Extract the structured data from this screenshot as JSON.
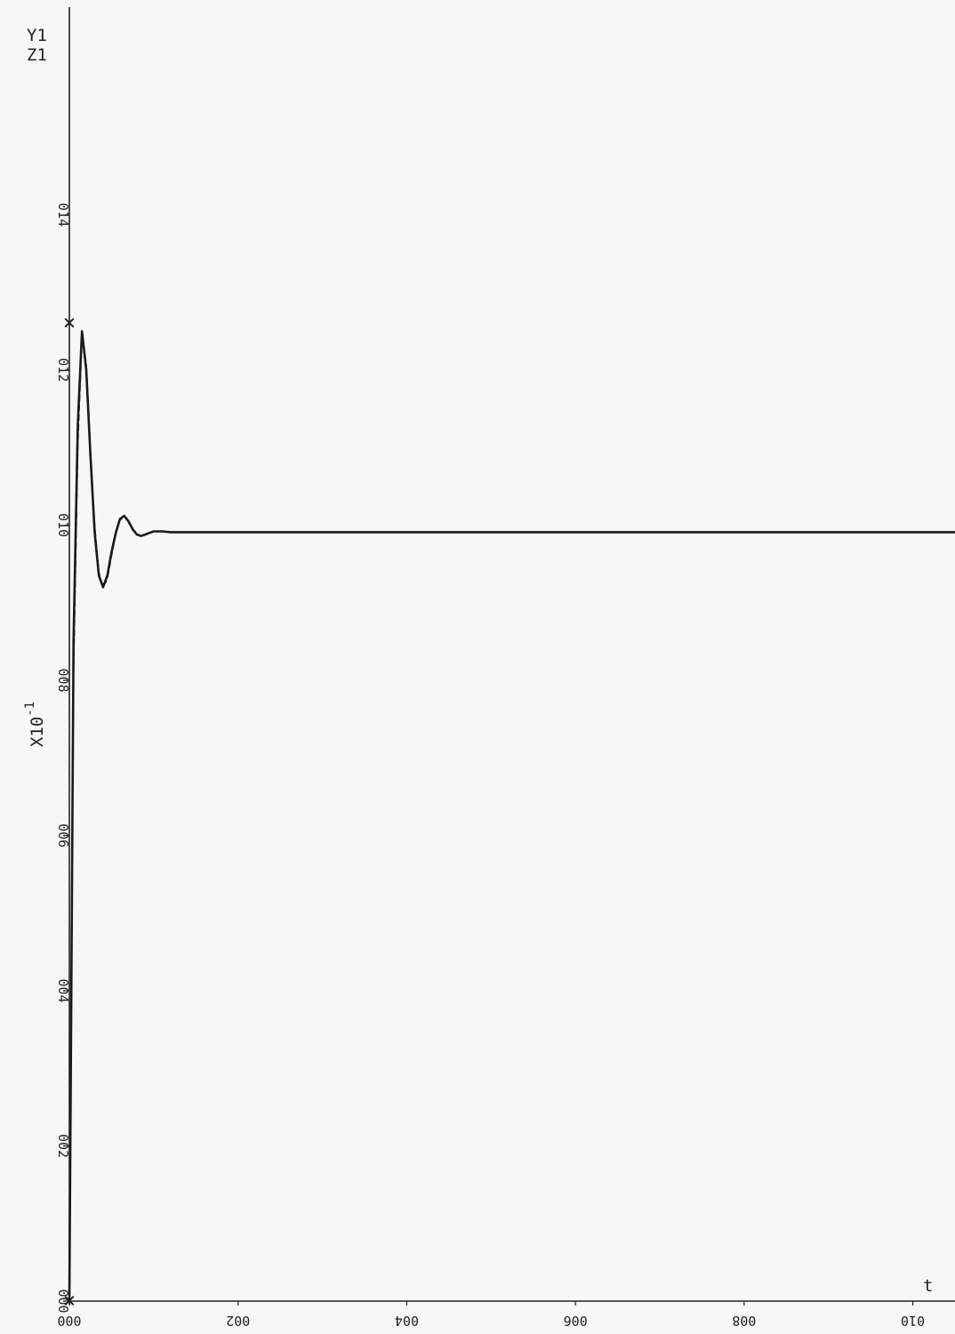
{
  "chart_data": {
    "type": "line",
    "title": "",
    "xlabel": "t",
    "ylabel_lines": [
      "Y1",
      "Z1"
    ],
    "y_multiplier_label": "X10",
    "y_multiplier_exponent": "-1",
    "xlim": [
      0,
      10.5
    ],
    "ylim": [
      0,
      16
    ],
    "x_ticks": [
      0,
      2,
      4,
      6,
      8,
      10
    ],
    "x_tick_labels": [
      "000",
      "002",
      "004",
      "006",
      "008",
      "010"
    ],
    "y_ticks": [
      0,
      2,
      4,
      6,
      8,
      10,
      12,
      14
    ],
    "y_tick_labels": [
      "000",
      "002",
      "004",
      "006",
      "008",
      "010",
      "012",
      "014"
    ],
    "grid": false,
    "markers": [
      {
        "symbol": "×",
        "x": 0,
        "y": 12.6
      },
      {
        "symbol": "×",
        "x": 0,
        "y": 0
      }
    ],
    "series": [
      {
        "style": "solid",
        "x": [
          0,
          0.05,
          0.1,
          0.15,
          0.2,
          0.25,
          0.3,
          0.35,
          0.4,
          0.45,
          0.5,
          0.55,
          0.6,
          0.65,
          0.7,
          0.75,
          0.8,
          0.85,
          0.9,
          0.95,
          1.0,
          1.1,
          1.2,
          1.3,
          1.5,
          2,
          3,
          4,
          5,
          6,
          7,
          8,
          9,
          10,
          10.5
        ],
        "y": [
          0,
          8.5,
          11.3,
          12.5,
          12.0,
          10.9,
          9.9,
          9.35,
          9.2,
          9.35,
          9.65,
          9.9,
          10.08,
          10.12,
          10.05,
          9.95,
          9.88,
          9.86,
          9.88,
          9.9,
          9.92,
          9.92,
          9.91,
          9.91,
          9.91,
          9.91,
          9.91,
          9.91,
          9.91,
          9.91,
          9.91,
          9.91,
          9.91,
          9.91,
          9.91
        ]
      },
      {
        "style": "dashed",
        "x": [
          0,
          0.05,
          0.1,
          0.15,
          0.2,
          0.25,
          0.3,
          0.35,
          0.4,
          0.45,
          0.5,
          0.55,
          0.6,
          0.65,
          0.7,
          0.75,
          0.8,
          0.85,
          0.9,
          0.95,
          1.0,
          1.1,
          1.2,
          1.3,
          1.5,
          2,
          3,
          4,
          5,
          6,
          7,
          8,
          9,
          10,
          10.5
        ],
        "y": [
          0,
          8.0,
          11.0,
          12.4,
          12.1,
          11.0,
          10.0,
          9.4,
          9.2,
          9.3,
          9.6,
          9.88,
          10.06,
          10.12,
          10.06,
          9.96,
          9.88,
          9.86,
          9.88,
          9.9,
          9.91,
          9.92,
          9.91,
          9.91,
          9.91,
          9.91,
          9.91,
          9.91,
          9.91,
          9.91,
          9.91,
          9.91,
          9.91,
          9.91,
          9.91
        ]
      }
    ]
  }
}
